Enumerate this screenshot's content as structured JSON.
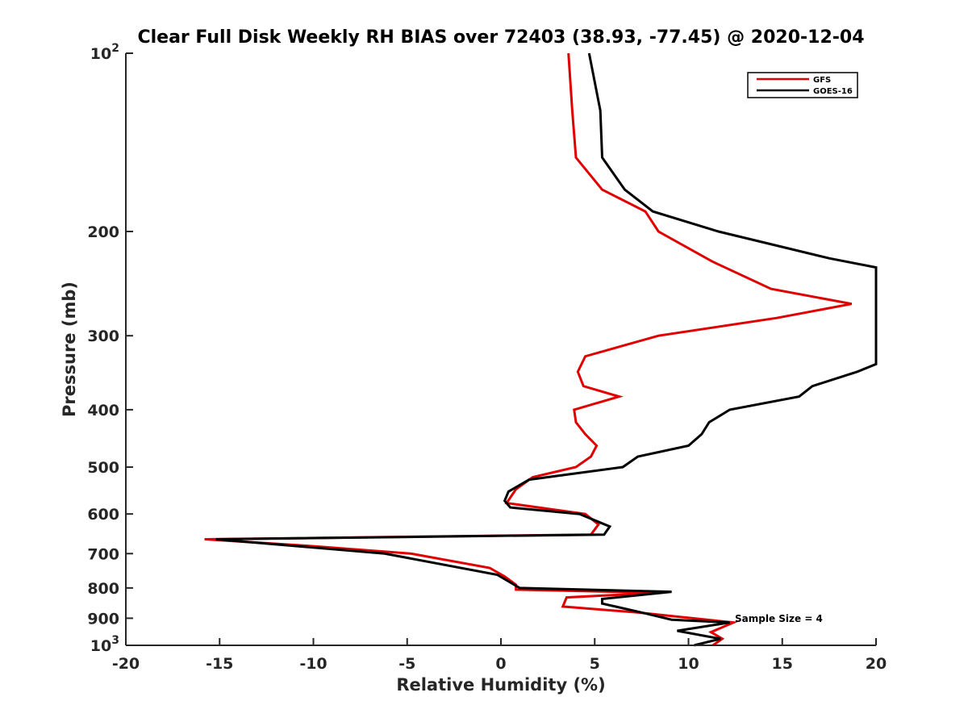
{
  "chart_data": {
    "type": "line",
    "title": "Clear Full Disk Weekly RH BIAS over 72403 (38.93, -77.45) @ 2020-12-04",
    "xlabel": "Relative Humidity (%)",
    "ylabel": "Pressure (mb)",
    "xlim": [
      -20,
      20
    ],
    "ylim": [
      1000,
      100
    ],
    "yscale": "log",
    "y_reversed": true,
    "grid": false,
    "legend_position": "top-right",
    "x_ticks": [
      "-20",
      "-15",
      "-10",
      "-5",
      "0",
      "5",
      "10",
      "15",
      "20"
    ],
    "y_ticks": [
      {
        "value": 100,
        "base": "10",
        "exp": "2"
      },
      {
        "value": 200,
        "label": "200"
      },
      {
        "value": 300,
        "label": "300"
      },
      {
        "value": 400,
        "label": "400"
      },
      {
        "value": 500,
        "label": "500"
      },
      {
        "value": 600,
        "label": "600"
      },
      {
        "value": 700,
        "label": "700"
      },
      {
        "value": 800,
        "label": "800"
      },
      {
        "value": 900,
        "label": "900"
      },
      {
        "value": 1000,
        "base": "10",
        "exp": "3"
      }
    ],
    "annotation": "Sample Size = 4",
    "series": [
      {
        "name": "GFS",
        "color": "#e00000",
        "points": [
          [
            3.6,
            100
          ],
          [
            3.8,
            125
          ],
          [
            4.0,
            150
          ],
          [
            5.4,
            170
          ],
          [
            7.7,
            185
          ],
          [
            8.4,
            200
          ],
          [
            11.3,
            225
          ],
          [
            14.4,
            250
          ],
          [
            18.7,
            265
          ],
          [
            14.7,
            280
          ],
          [
            8.4,
            300
          ],
          [
            4.5,
            325
          ],
          [
            4.1,
            345
          ],
          [
            4.4,
            365
          ],
          [
            6.3,
            380
          ],
          [
            3.9,
            400
          ],
          [
            4.0,
            420
          ],
          [
            4.5,
            440
          ],
          [
            5.1,
            460
          ],
          [
            4.8,
            480
          ],
          [
            4.0,
            500
          ],
          [
            1.7,
            520
          ],
          [
            0.8,
            545
          ],
          [
            0.3,
            575
          ],
          [
            4.5,
            600
          ],
          [
            5.2,
            625
          ],
          [
            4.8,
            650
          ],
          [
            -15.8,
            662
          ],
          [
            -10.0,
            680
          ],
          [
            -4.8,
            700
          ],
          [
            -0.6,
            740
          ],
          [
            0.2,
            765
          ],
          [
            0.8,
            790
          ],
          [
            0.8,
            805
          ],
          [
            8.4,
            815
          ],
          [
            3.5,
            830
          ],
          [
            3.3,
            860
          ],
          [
            7.3,
            880
          ],
          [
            12.4,
            915
          ],
          [
            11.2,
            950
          ],
          [
            11.8,
            975
          ],
          [
            11.3,
            1000
          ]
        ]
      },
      {
        "name": "GOES-16",
        "color": "#000000",
        "points": [
          [
            4.7,
            100
          ],
          [
            5.3,
            125
          ],
          [
            5.4,
            150
          ],
          [
            6.6,
            170
          ],
          [
            8.1,
            185
          ],
          [
            11.6,
            200
          ],
          [
            17.5,
            222
          ],
          [
            20.0,
            230
          ],
          [
            20.0,
            335
          ],
          [
            19.0,
            345
          ],
          [
            16.6,
            365
          ],
          [
            15.9,
            380
          ],
          [
            12.2,
            400
          ],
          [
            11.1,
            420
          ],
          [
            10.7,
            440
          ],
          [
            10.0,
            460
          ],
          [
            7.3,
            480
          ],
          [
            6.5,
            500
          ],
          [
            1.5,
            525
          ],
          [
            0.4,
            550
          ],
          [
            0.2,
            570
          ],
          [
            0.5,
            585
          ],
          [
            4.2,
            600
          ],
          [
            5.8,
            630
          ],
          [
            5.5,
            650
          ],
          [
            -15.2,
            662
          ],
          [
            -6.2,
            700
          ],
          [
            -0.2,
            760
          ],
          [
            1.0,
            800
          ],
          [
            9.1,
            812
          ],
          [
            5.4,
            835
          ],
          [
            5.4,
            850
          ],
          [
            7.5,
            880
          ],
          [
            9.1,
            905
          ],
          [
            12.2,
            915
          ],
          [
            9.4,
            945
          ],
          [
            11.7,
            975
          ],
          [
            10.3,
            1000
          ]
        ]
      }
    ]
  }
}
